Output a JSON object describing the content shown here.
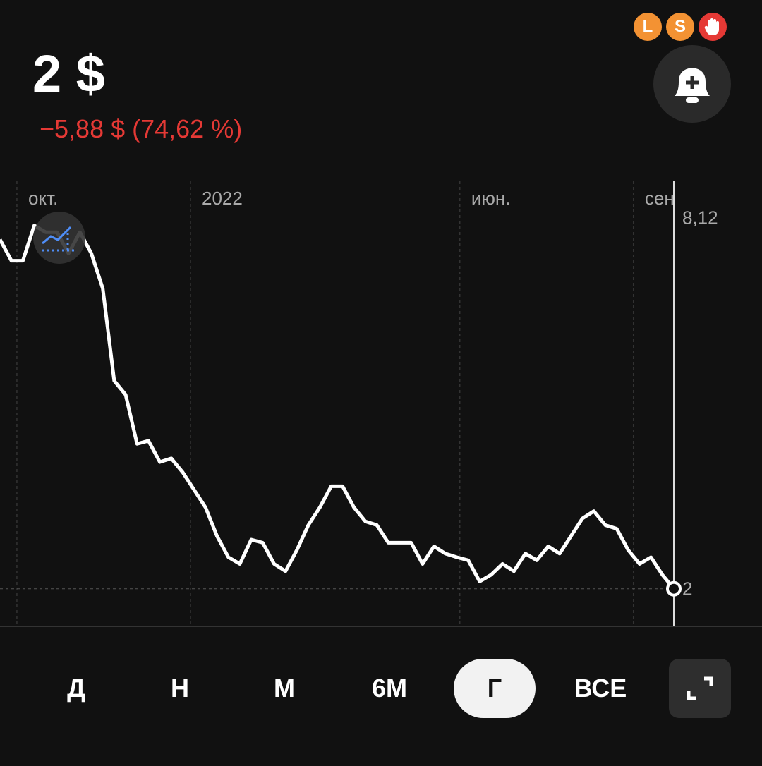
{
  "header": {
    "price": "2 $",
    "change": "−5,88 $ (74,62 %)",
    "badges": [
      "L",
      "S"
    ]
  },
  "chart_data": {
    "type": "line",
    "series": [
      {
        "color": "#ffffff",
        "values": [
          7.76,
          7.41,
          7.41,
          7.99,
          7.88,
          7.88,
          7.53,
          7.88,
          7.53,
          6.95,
          5.43,
          5.2,
          4.39,
          4.44,
          4.09,
          4.15,
          3.92,
          3.63,
          3.34,
          2.87,
          2.52,
          2.41,
          2.81,
          2.76,
          2.41,
          2.29,
          2.64,
          3.05,
          3.34,
          3.69,
          3.69,
          3.34,
          3.11,
          3.05,
          2.76,
          2.76,
          2.76,
          2.41,
          2.7,
          2.58,
          2.52,
          2.47,
          2.12,
          2.23,
          2.41,
          2.29,
          2.58,
          2.47,
          2.7,
          2.58,
          2.87,
          3.16,
          3.28,
          3.05,
          2.99,
          2.64,
          2.41,
          2.52,
          2.23,
          2.0
        ]
      }
    ],
    "xlim": [
      0,
      59
    ],
    "xticks": [
      {
        "value": 1.48,
        "label": "окт."
      },
      {
        "value": 16.68,
        "label": "2022"
      },
      {
        "value": 40.27,
        "label": "июн."
      },
      {
        "value": 55.47,
        "label": "сен"
      }
    ],
    "ylim": [
      1.38,
      8.72
    ],
    "yticks": [
      {
        "value": 8.12,
        "label": "8,12"
      },
      2
    ]
  },
  "range_buttons": {
    "items": [
      "Д",
      "Н",
      "М",
      "6М",
      "Г",
      "ВСЕ"
    ],
    "selected": 4
  }
}
